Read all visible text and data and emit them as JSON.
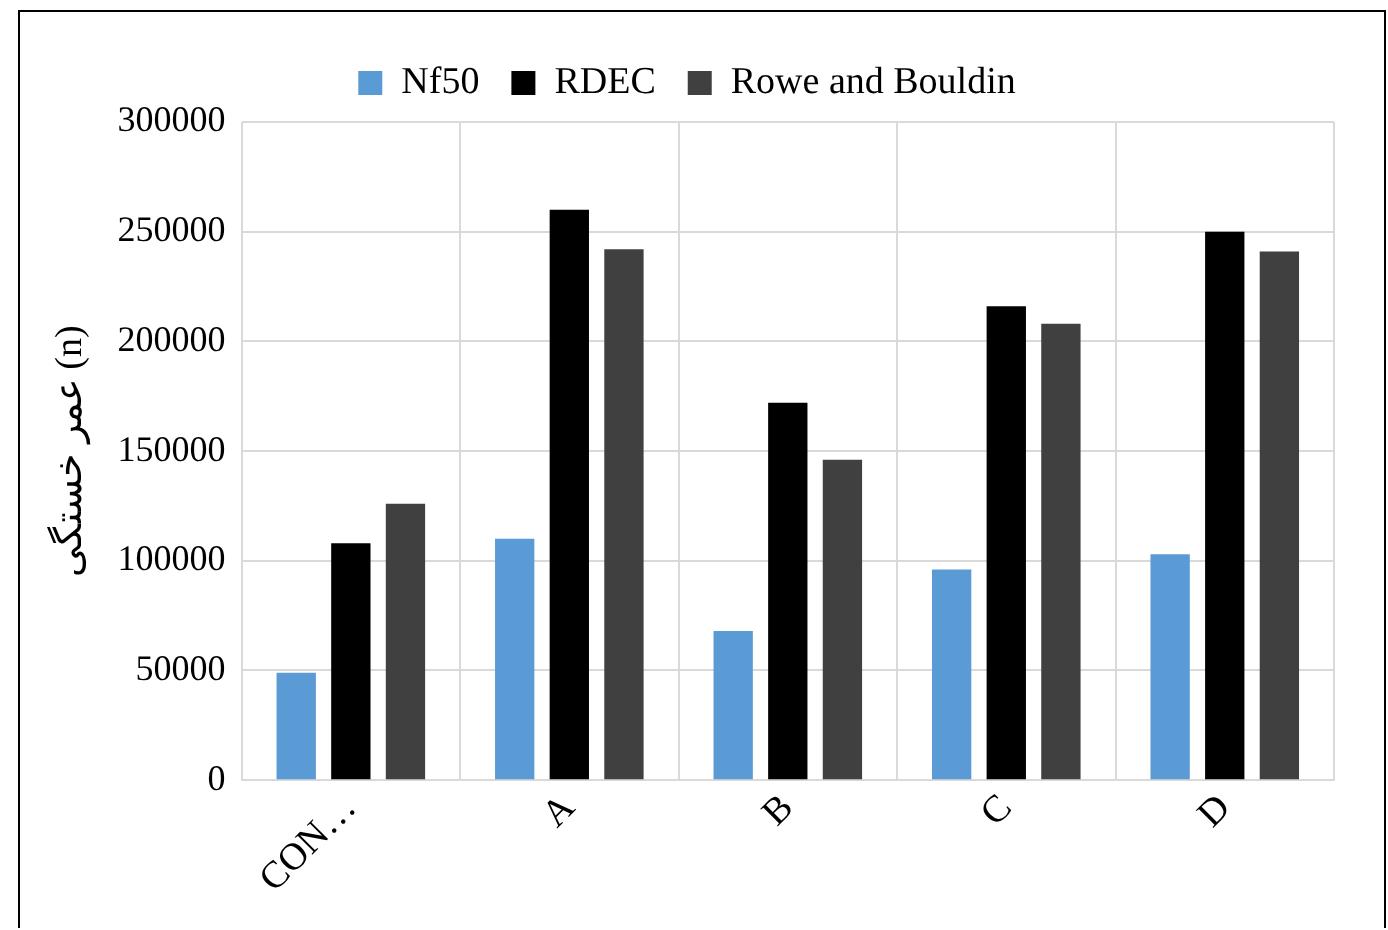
{
  "chart_data": {
    "type": "bar",
    "ylabel": "عمر خستگی (n)",
    "categories": [
      "CON…",
      "A",
      "B",
      "C",
      "D"
    ],
    "series": [
      {
        "name": "Nf50",
        "color": "#5b9bd5",
        "values": [
          49000,
          110000,
          68000,
          96000,
          103000
        ]
      },
      {
        "name": "RDEC",
        "color": "#000000",
        "values": [
          108000,
          260000,
          172000,
          216000,
          250000
        ]
      },
      {
        "name": "Rowe and Bouldin",
        "color": "#404040",
        "values": [
          126000,
          242000,
          146000,
          208000,
          241000
        ]
      }
    ],
    "ylim": [
      0,
      300000
    ],
    "yticks": [
      0,
      50000,
      100000,
      150000,
      200000,
      250000,
      300000
    ],
    "grid": true,
    "legend": "top"
  }
}
